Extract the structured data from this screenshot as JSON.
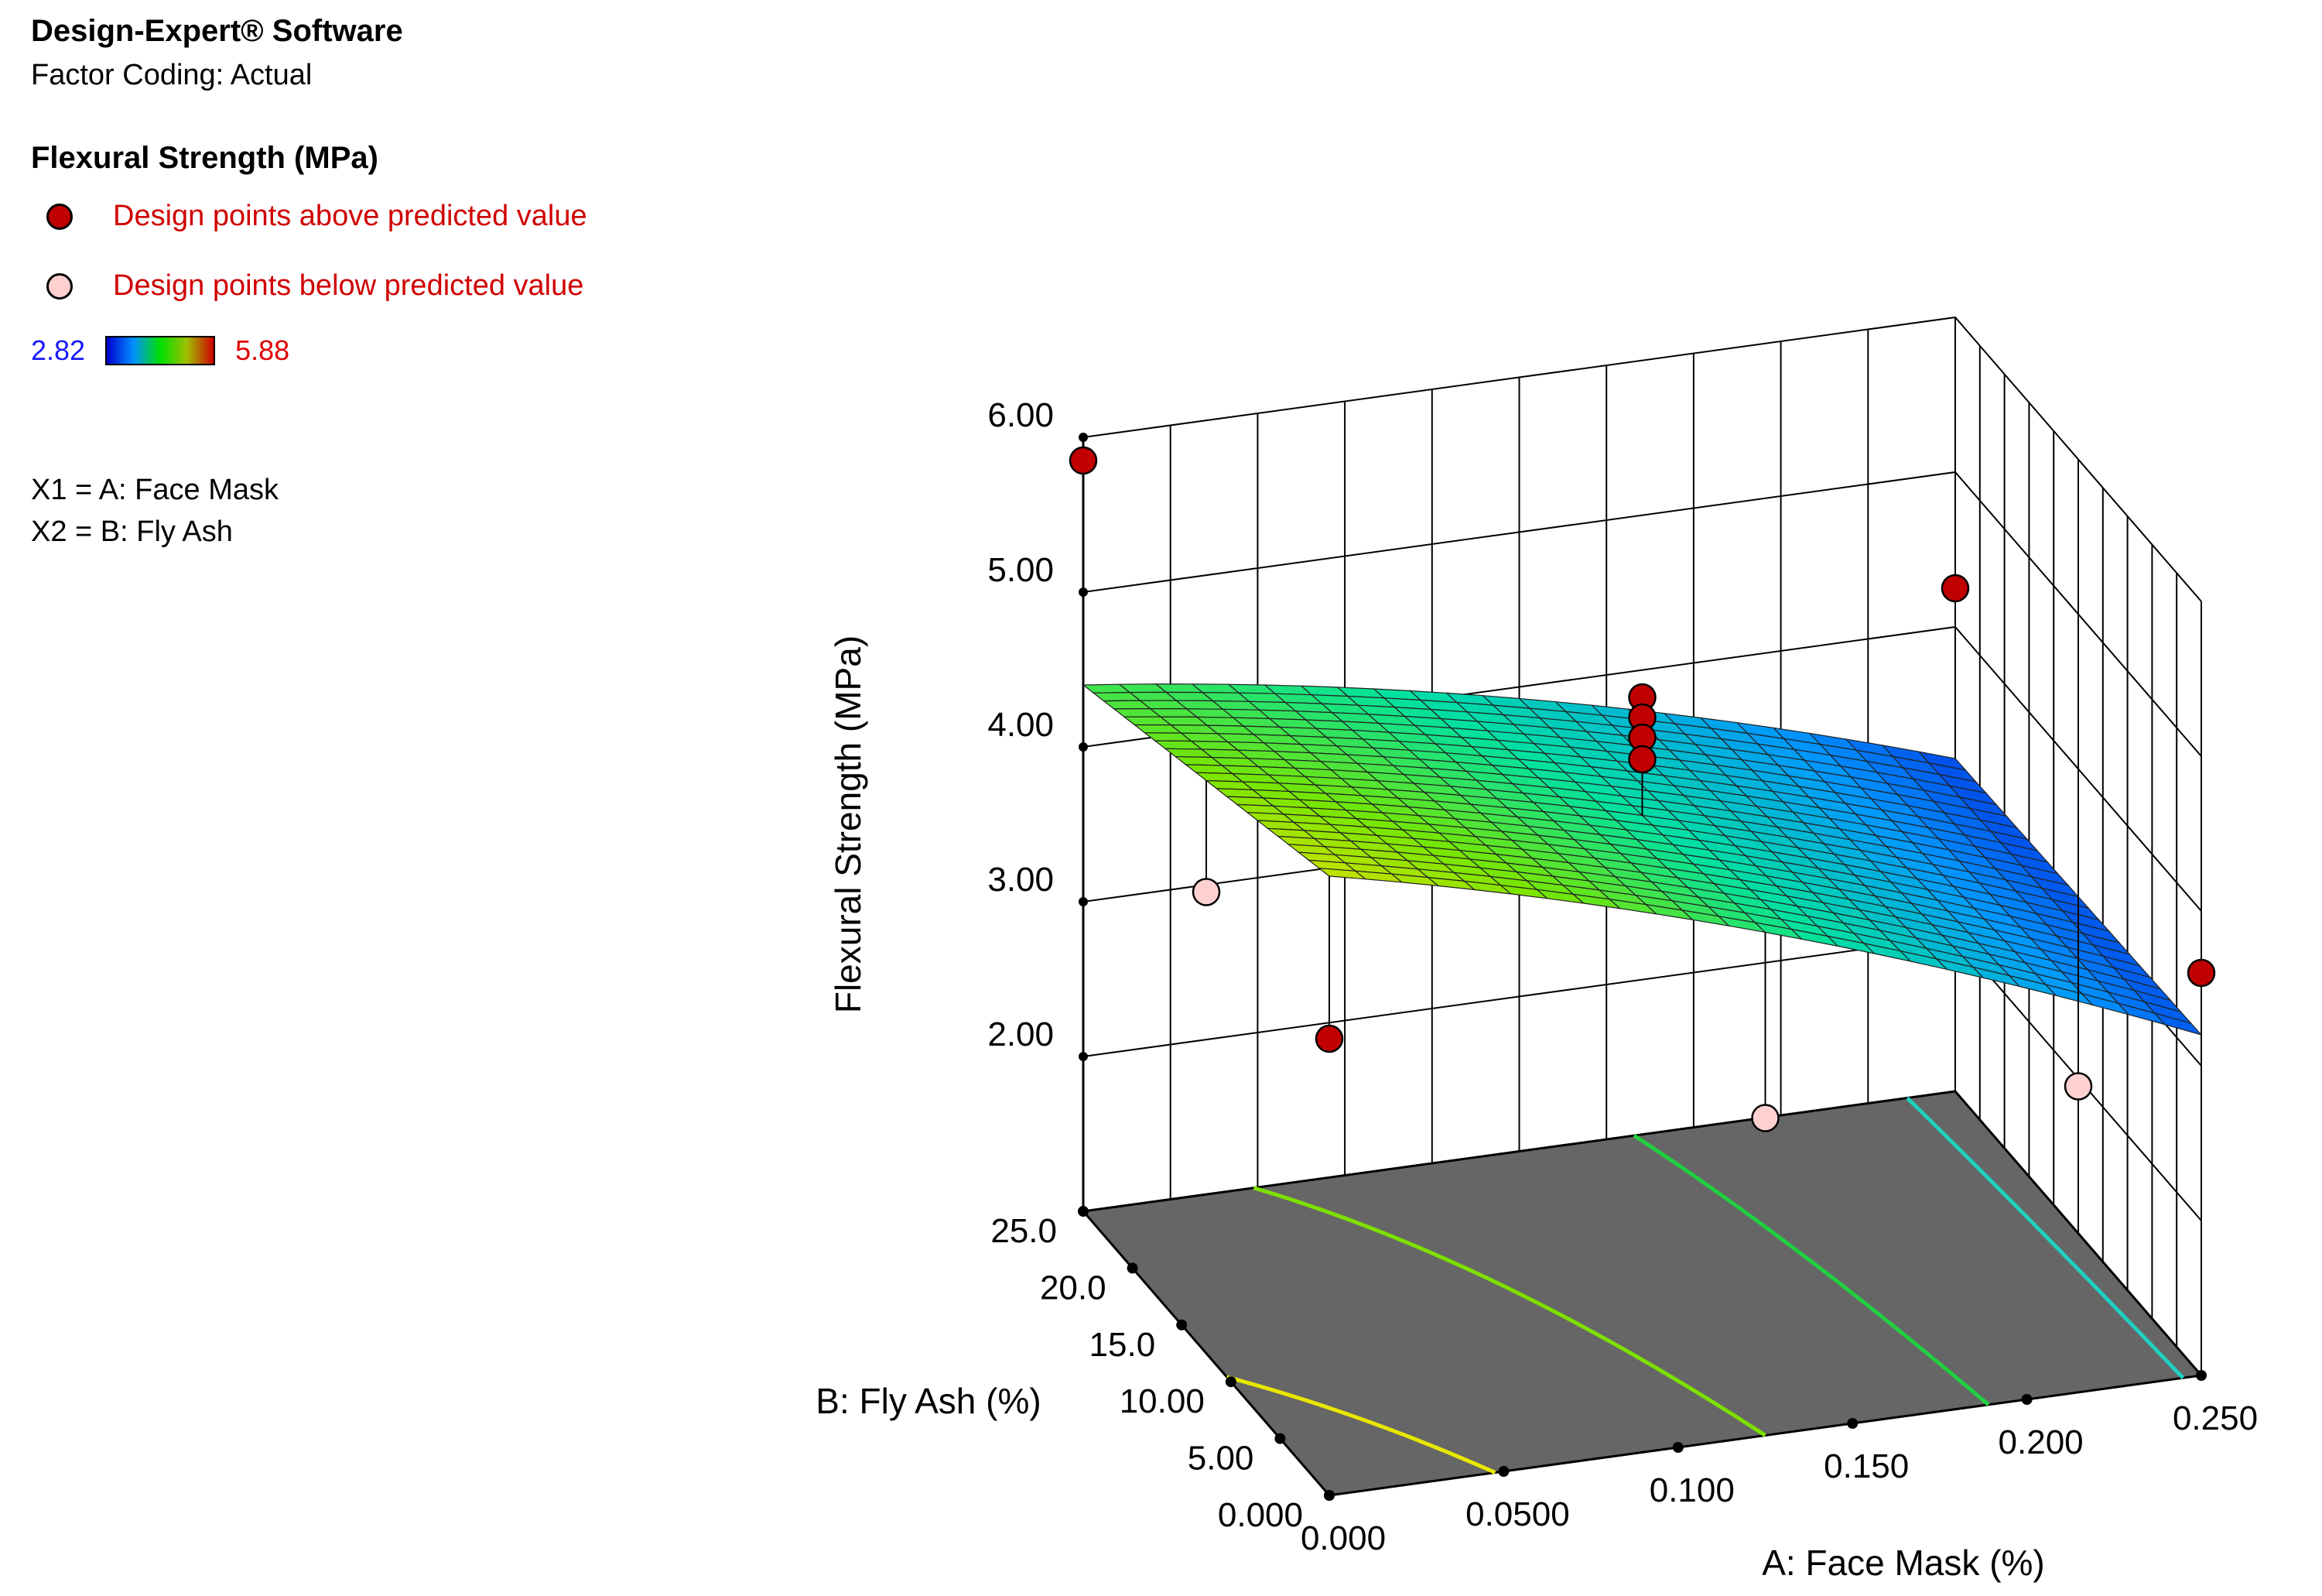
{
  "legend": {
    "app_title": "Design-Expert® Software",
    "factor_coding": "Factor Coding: Actual",
    "response_title": "Flexural Strength (MPa)",
    "above_label": "Design points above predicted value",
    "below_label": "Design points below predicted value",
    "scale_min": "2.82",
    "scale_max": "5.88",
    "x1": "X1 = A: Face Mask",
    "x2": "X2 = B: Fly Ash"
  },
  "colors": {
    "above": "#c00000",
    "below": "#ffd0d0",
    "scale_min": "#1a1aff",
    "scale_max": "#e00000",
    "floor": "#666666"
  },
  "chart_data": {
    "type": "surface3d",
    "zlabel": "Flexural Strength (MPa)",
    "xlabel": "A: Face Mask (%)",
    "ylabel": "B: Fly Ash (%)",
    "z_ticks": [
      "2.00",
      "3.00",
      "4.00",
      "5.00",
      "6.00"
    ],
    "x_ticks": [
      "0.000",
      "0.0500",
      "0.100",
      "0.150",
      "0.200",
      "0.250"
    ],
    "y_ticks": [
      "0.000",
      "5.00",
      "10.00",
      "15.0",
      "20.0",
      "25.0"
    ],
    "zlim": [
      2,
      6
    ],
    "xlim": [
      0,
      0.25
    ],
    "ylim": [
      0,
      25
    ],
    "surface_range": [
      2.82,
      5.88
    ],
    "design_points_above": [
      {
        "x": 0.0,
        "y": 25,
        "z": 5.85
      },
      {
        "x": 0.0,
        "y": 0,
        "z": 3.95
      },
      {
        "x": 0.125,
        "y": 12.5,
        "z": 4.85
      },
      {
        "x": 0.125,
        "y": 12.5,
        "z": 4.72
      },
      {
        "x": 0.125,
        "y": 12.5,
        "z": 4.59
      },
      {
        "x": 0.125,
        "y": 12.5,
        "z": 4.45
      },
      {
        "x": 0.25,
        "y": 25,
        "z": 4.25
      },
      {
        "x": 0.25,
        "y": 0,
        "z": 3.6
      }
    ],
    "design_points_below": [
      {
        "x": 0.0,
        "y": 12.5,
        "z": 3.98
      },
      {
        "x": 0.125,
        "y": 0,
        "z": 3.05
      },
      {
        "x": 0.25,
        "y": 12.5,
        "z": 1.95
      }
    ]
  }
}
